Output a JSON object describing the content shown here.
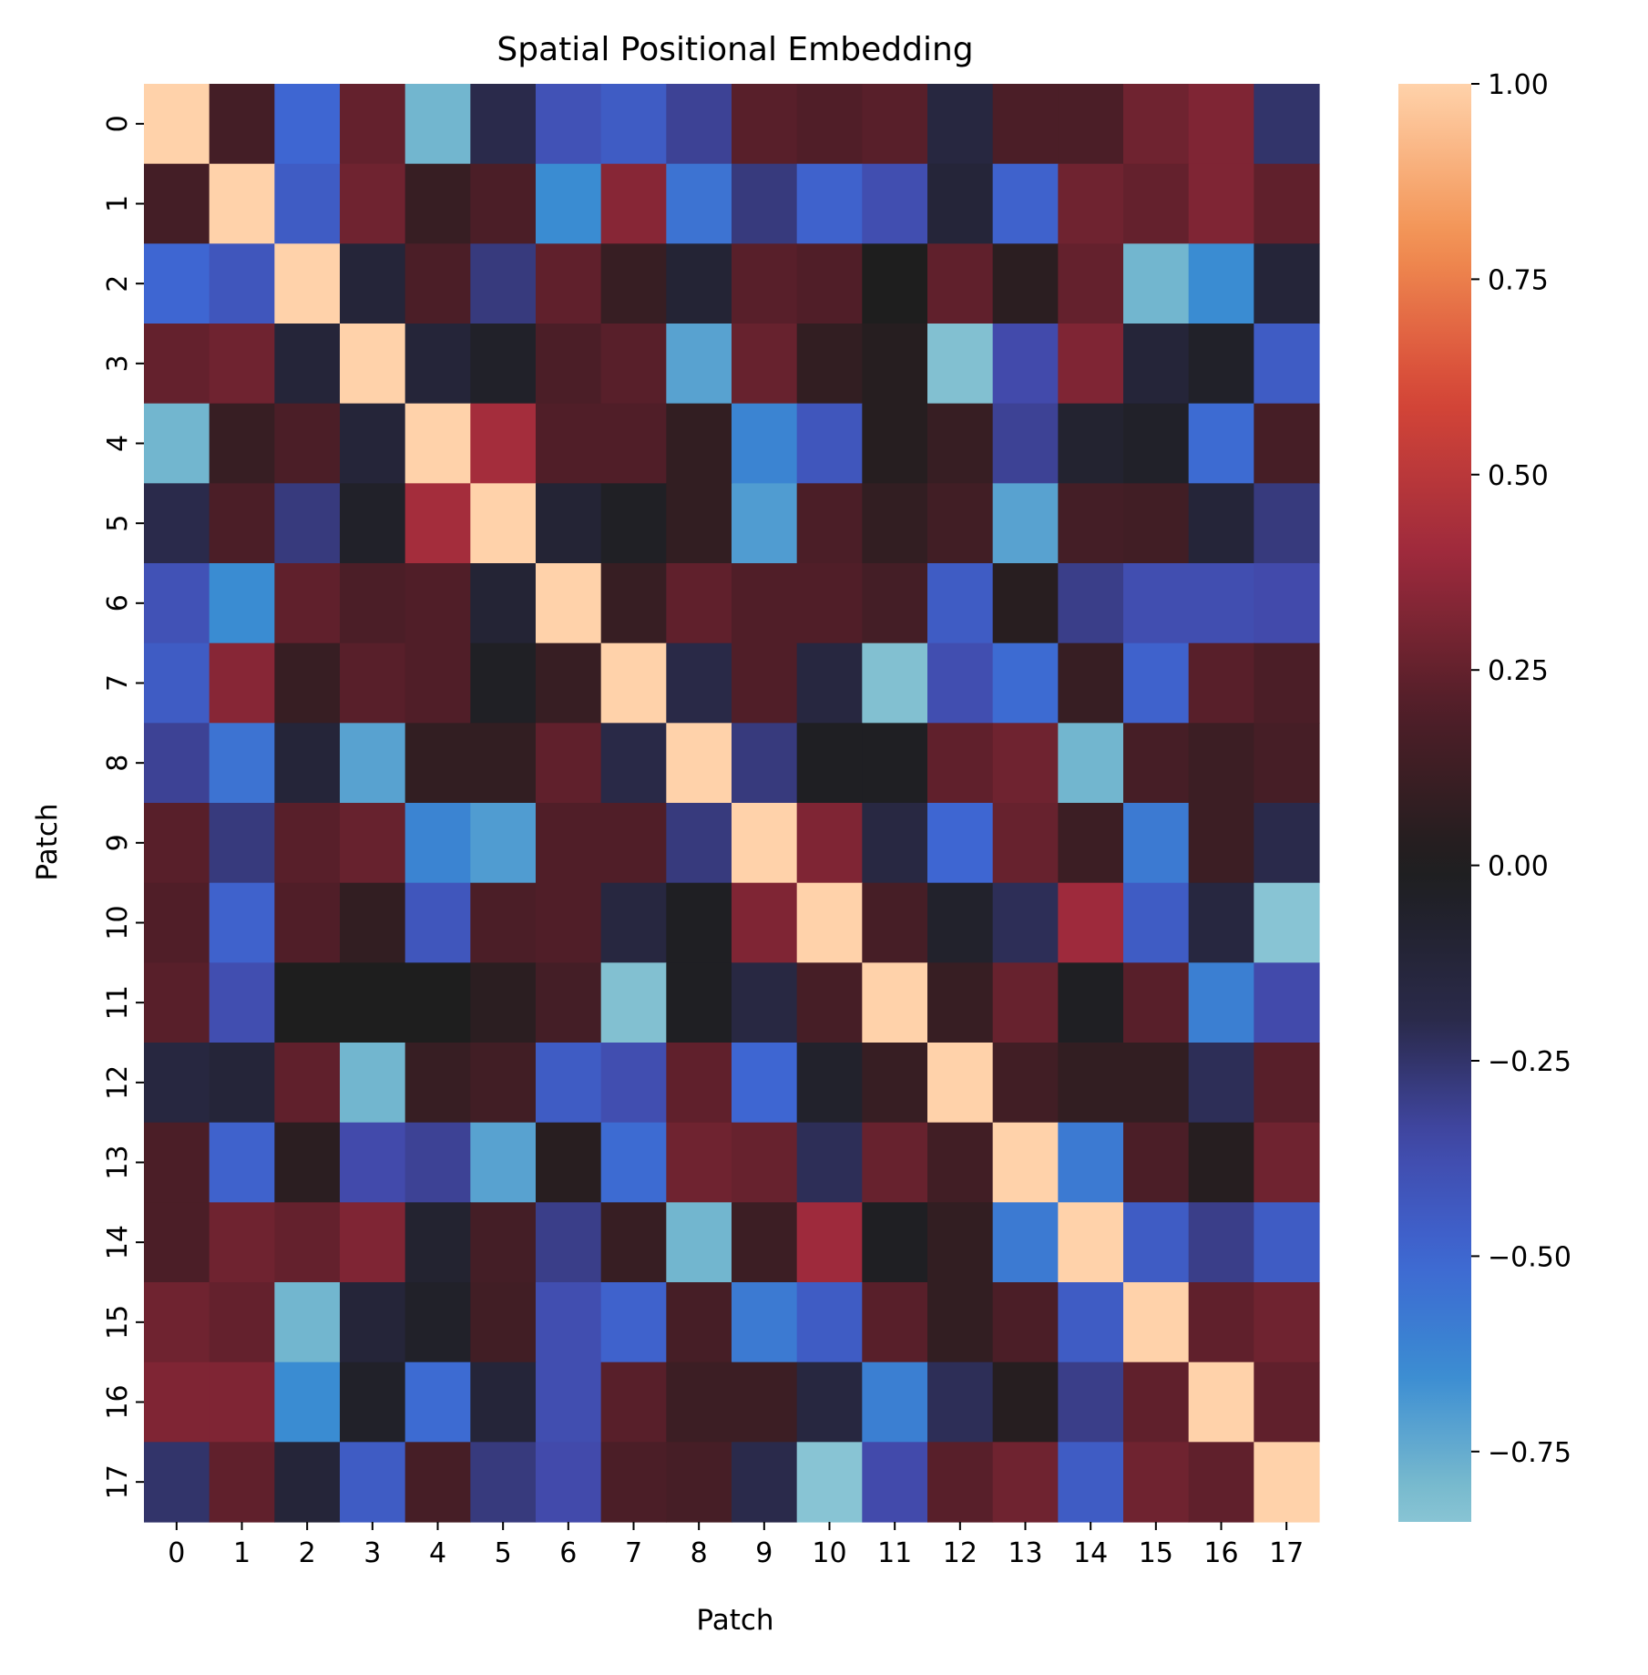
{
  "chart_data": {
    "type": "heatmap",
    "title": "Spatial Positional Embedding",
    "xlabel": "Patch",
    "ylabel": "Patch",
    "x_categories": [
      "0",
      "1",
      "2",
      "3",
      "4",
      "5",
      "6",
      "7",
      "8",
      "9",
      "10",
      "11",
      "12",
      "13",
      "14",
      "15",
      "16",
      "17"
    ],
    "y_categories": [
      "0",
      "1",
      "2",
      "3",
      "4",
      "5",
      "6",
      "7",
      "8",
      "9",
      "10",
      "11",
      "12",
      "13",
      "14",
      "15",
      "16",
      "17"
    ],
    "colorbar": {
      "vmin": -0.84,
      "vmax": 1.0,
      "ticks": [
        1.0,
        0.75,
        0.5,
        0.25,
        0.0,
        -0.25,
        -0.5,
        -0.75
      ],
      "tick_labels": [
        "1.00",
        "0.75",
        "0.50",
        "0.25",
        "0.00",
        "−0.25",
        "−0.50",
        "−0.75"
      ],
      "colormap": "icefire"
    },
    "values": [
      [
        1.0,
        0.15,
        -0.5,
        0.25,
        -0.78,
        -0.2,
        -0.4,
        -0.45,
        -0.32,
        0.22,
        0.2,
        0.22,
        -0.15,
        0.18,
        0.18,
        0.28,
        0.32,
        -0.25
      ],
      [
        0.15,
        1.0,
        -0.45,
        0.28,
        0.1,
        0.18,
        -0.65,
        0.34,
        -0.55,
        -0.28,
        -0.48,
        -0.38,
        -0.12,
        -0.48,
        0.28,
        0.25,
        0.32,
        0.24
      ],
      [
        -0.5,
        -0.42,
        1.0,
        -0.12,
        0.18,
        -0.28,
        0.24,
        0.1,
        -0.1,
        0.22,
        0.2,
        0.0,
        0.24,
        0.05,
        0.25,
        -0.78,
        -0.65,
        -0.12
      ],
      [
        0.25,
        0.28,
        -0.12,
        1.0,
        -0.12,
        -0.05,
        0.18,
        0.22,
        -0.72,
        0.26,
        0.08,
        0.03,
        -0.82,
        -0.36,
        0.32,
        -0.12,
        -0.05,
        -0.45
      ],
      [
        -0.78,
        0.1,
        0.18,
        -0.12,
        1.0,
        0.42,
        0.2,
        0.2,
        0.08,
        -0.62,
        -0.42,
        0.03,
        0.1,
        -0.32,
        -0.08,
        -0.05,
        -0.52,
        0.16
      ],
      [
        -0.2,
        0.18,
        -0.28,
        -0.05,
        0.42,
        1.0,
        -0.1,
        -0.03,
        0.08,
        -0.7,
        0.18,
        0.08,
        0.14,
        -0.72,
        0.15,
        0.14,
        -0.12,
        -0.28
      ],
      [
        -0.4,
        -0.65,
        0.24,
        0.18,
        0.2,
        -0.1,
        1.0,
        0.1,
        0.24,
        0.2,
        0.2,
        0.15,
        -0.45,
        0.04,
        -0.3,
        -0.38,
        -0.38,
        -0.36
      ],
      [
        -0.45,
        0.34,
        0.1,
        0.22,
        0.2,
        -0.03,
        0.1,
        1.0,
        -0.18,
        0.2,
        -0.15,
        -0.82,
        -0.38,
        -0.52,
        0.1,
        -0.48,
        0.22,
        0.18
      ],
      [
        -0.32,
        -0.55,
        -0.12,
        -0.72,
        0.08,
        0.08,
        0.24,
        -0.18,
        1.0,
        -0.28,
        -0.02,
        -0.02,
        0.24,
        0.28,
        -0.78,
        0.16,
        0.12,
        0.16
      ],
      [
        0.22,
        -0.28,
        0.22,
        0.26,
        -0.62,
        -0.7,
        0.2,
        0.2,
        -0.28,
        1.0,
        0.32,
        -0.16,
        -0.5,
        0.26,
        0.12,
        -0.58,
        0.12,
        -0.2
      ],
      [
        0.2,
        -0.48,
        0.2,
        0.08,
        -0.42,
        0.18,
        0.2,
        -0.15,
        -0.02,
        0.32,
        1.0,
        0.16,
        -0.06,
        -0.22,
        0.4,
        -0.45,
        -0.15,
        -0.84
      ],
      [
        0.22,
        -0.38,
        0.0,
        0.0,
        0.0,
        0.05,
        0.15,
        -0.82,
        -0.02,
        -0.16,
        0.16,
        1.0,
        0.1,
        0.26,
        -0.02,
        0.22,
        -0.6,
        -0.36
      ],
      [
        -0.15,
        -0.12,
        0.24,
        -0.78,
        0.1,
        0.14,
        -0.45,
        -0.38,
        0.24,
        -0.5,
        -0.06,
        0.1,
        1.0,
        0.14,
        0.08,
        0.08,
        -0.22,
        0.22
      ],
      [
        0.18,
        -0.48,
        0.05,
        -0.36,
        -0.32,
        -0.72,
        0.04,
        -0.52,
        0.28,
        0.26,
        -0.22,
        0.26,
        0.14,
        1.0,
        -0.58,
        0.18,
        0.03,
        0.28
      ],
      [
        0.18,
        0.28,
        0.25,
        0.32,
        -0.08,
        0.15,
        -0.3,
        0.1,
        -0.78,
        0.12,
        0.4,
        -0.02,
        0.08,
        -0.58,
        1.0,
        -0.45,
        -0.3,
        -0.45
      ],
      [
        0.28,
        0.25,
        -0.78,
        -0.12,
        -0.05,
        0.14,
        -0.38,
        -0.48,
        0.16,
        -0.58,
        -0.45,
        0.22,
        0.08,
        0.18,
        -0.45,
        1.0,
        0.24,
        0.28
      ],
      [
        0.32,
        0.32,
        -0.65,
        -0.05,
        -0.52,
        -0.12,
        -0.38,
        0.22,
        0.12,
        0.12,
        -0.15,
        -0.6,
        -0.22,
        0.03,
        -0.3,
        0.24,
        1.0,
        0.24
      ],
      [
        -0.25,
        0.24,
        -0.12,
        -0.45,
        0.16,
        -0.28,
        -0.36,
        0.18,
        0.16,
        -0.2,
        -0.84,
        -0.36,
        0.22,
        0.28,
        -0.45,
        0.28,
        0.24,
        1.0
      ]
    ]
  }
}
